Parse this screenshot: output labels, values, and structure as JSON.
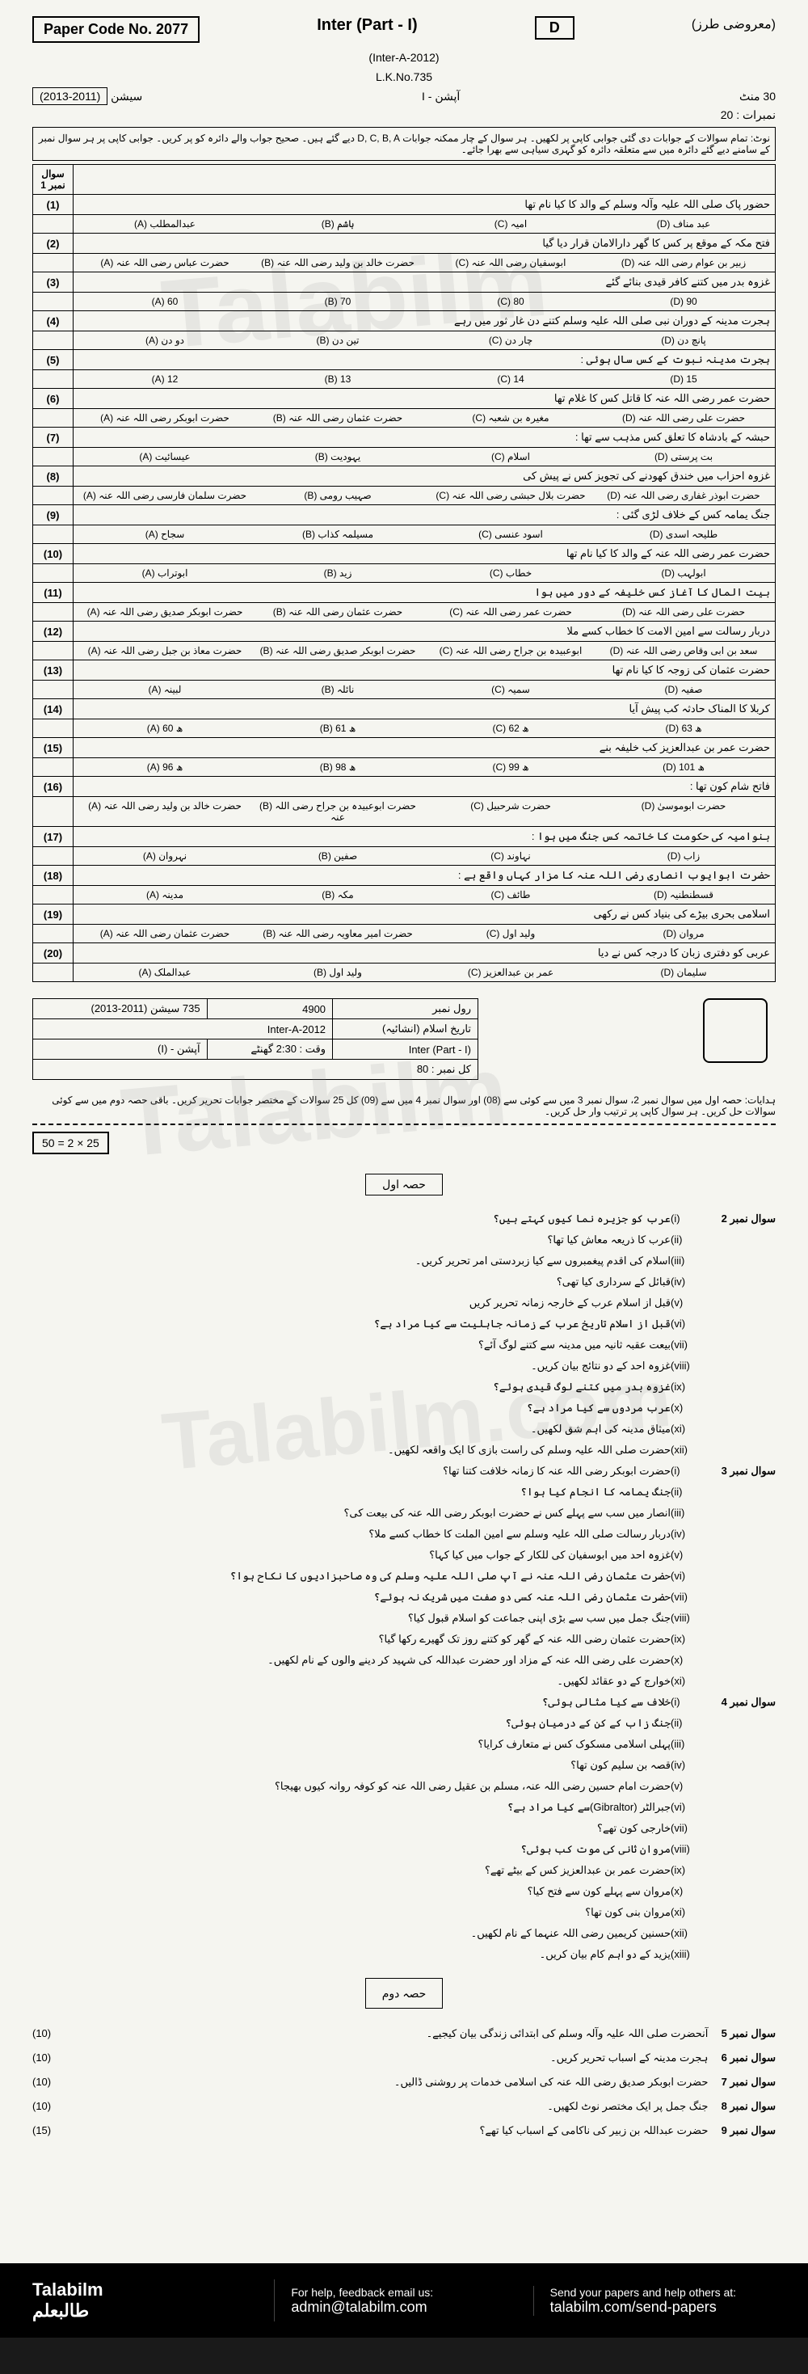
{
  "header": {
    "paper_code_label": "Paper Code No.",
    "paper_code": "2077",
    "inter": "Inter (Part - I)",
    "variant": "D",
    "exam": "(Inter-A-2012)",
    "lk": "L.K.No.735",
    "session_label": "سیشن",
    "session": "(2011-2013)",
    "option": "آپشن - I",
    "time": "30 منٹ",
    "marks_label": "نمبرات :",
    "marks": "20",
    "subject": "(معروضی طرز)"
  },
  "note": "نوٹ: تمام سوالات کے جوابات دی گئی جوابی کاپی پر لکھیں۔ ہر سوال کے چار ممکنہ جوابات D, C, B, A دیے گئے ہیں۔ صحیح جواب والے دائرہ کو پر کریں۔ جوابی کاپی پر ہر سوال نمبر کے سامنے دیے گئے دائرہ میں سے متعلقہ دائرہ کو گہری سیاہی سے بھرا جائے۔",
  "q1_label": "سوال نمبر 1",
  "mcq": [
    {
      "n": "(1)",
      "q": "حضور پاک صلی اللہ علیہ وآلہ وسلم کے والد کا کیا نام تھا",
      "opts": [
        "(A) عبدالمطلب",
        "(B) ہاشم",
        "(C) امیہ",
        "(D) عبد مناف"
      ]
    },
    {
      "n": "(2)",
      "q": "فتح مکہ کے موقع پر کس کا گھر دارالامان قرار دیا گیا",
      "opts": [
        "(A) حضرت عباس رضی اللہ عنہ",
        "(B) حضرت خالد بن ولید رضی اللہ عنہ",
        "(C) ابوسفیان رضی اللہ عنہ",
        "(D) زبیر بن عوام رضی اللہ عنہ"
      ]
    },
    {
      "n": "(3)",
      "q": "غزوہ بدر میں کتنے کافر قیدی بنائے گئے",
      "opts": [
        "(A) 60",
        "(B) 70",
        "(C) 80",
        "(D) 90"
      ]
    },
    {
      "n": "(4)",
      "q": "ہجرت مدینہ کے دوران نبی صلی اللہ علیہ وسلم کتنے دن غار ثور میں رہے",
      "opts": [
        "(A) دو دن",
        "(B) تین دن",
        "(C) چار دن",
        "(D) پانچ دن"
      ]
    },
    {
      "n": "(5)",
      "q": "ہجرت مدینہ نبوت کے کس سال ہوئی :",
      "opts": [
        "(A) 12",
        "(B) 13",
        "(C) 14",
        "(D) 15"
      ]
    },
    {
      "n": "(6)",
      "q": "حضرت عمر رضی اللہ عنہ کا قاتل کس کا غلام تھا",
      "opts": [
        "(A) حضرت ابوبکر رضی اللہ عنہ",
        "(B) حضرت عثمان رضی اللہ عنہ",
        "(C) مغیرہ بن شعبہ",
        "(D) حضرت علی رضی اللہ عنہ"
      ]
    },
    {
      "n": "(7)",
      "q": "حبشہ کے بادشاہ کا تعلق کس مذہب سے تھا :",
      "opts": [
        "(A) عیسائیت",
        "(B) یہودیت",
        "(C) اسلام",
        "(D) بت پرستی"
      ]
    },
    {
      "n": "(8)",
      "q": "غزوہ احزاب میں خندق کھودنے کی تجویز کس نے پیش کی",
      "opts": [
        "(A) حضرت سلمان فارسی رضی اللہ عنہ",
        "(B) صہیب رومی",
        "(C) حضرت بلال حبشی رضی اللہ عنہ",
        "(D) حضرت ابوذر غفاری رضی اللہ عنہ"
      ]
    },
    {
      "n": "(9)",
      "q": "جنگ یمامہ کس کے خلاف لڑی گئی :",
      "opts": [
        "(A) سجاح",
        "(B) مسیلمہ کذاب",
        "(C) اسود عنسی",
        "(D) طلیحہ اسدی"
      ]
    },
    {
      "n": "(10)",
      "q": "حضرت عمر رضی اللہ عنہ کے والد کا کیا نام تھا",
      "opts": [
        "(A) ابوتراب",
        "(B) زید",
        "(C) خطاب",
        "(D) ابولہب"
      ]
    },
    {
      "n": "(11)",
      "q": "بیت المال کا آغاز کس خلیفہ کے دور میں ہوا",
      "opts": [
        "(A) حضرت ابوبکر صدیق رضی اللہ عنہ",
        "(B) حضرت عثمان رضی اللہ عنہ",
        "(C) حضرت عمر رضی اللہ عنہ",
        "(D) حضرت علی رضی اللہ عنہ"
      ]
    },
    {
      "n": "(12)",
      "q": "دربار رسالت سے امین الامت کا خطاب کسے ملا",
      "opts": [
        "(A) حضرت معاذ بن جبل رضی اللہ عنہ",
        "(B) حضرت ابوبکر صدیق رضی اللہ عنہ",
        "(C) ابوعبیدہ بن جراح رضی اللہ عنہ",
        "(D) سعد بن ابی وقاص رضی اللہ عنہ"
      ]
    },
    {
      "n": "(13)",
      "q": "حضرت عثمان کی زوجہ کا کیا نام تھا",
      "opts": [
        "(A) لبینہ",
        "(B) نائلہ",
        "(C) سمیہ",
        "(D) صفیہ"
      ]
    },
    {
      "n": "(14)",
      "q": "کربلا کا المناک حادثہ کب پیش آیا",
      "opts": [
        "(A) 60 ھ",
        "(B) 61 ھ",
        "(C) 62 ھ",
        "(D) 63 ھ"
      ]
    },
    {
      "n": "(15)",
      "q": "حضرت عمر بن عبدالعزیز کب خلیفہ بنے",
      "opts": [
        "(A) 96 ھ",
        "(B) 98 ھ",
        "(C) 99 ھ",
        "(D) 101 ھ"
      ]
    },
    {
      "n": "(16)",
      "q": "فاتح شام کون تھا :",
      "opts": [
        "(A) حضرت خالد بن ولید رضی اللہ عنہ",
        "(B) حضرت ابوعبیدہ بن جراح رضی اللہ عنہ",
        "(C) حضرت شرحبیل",
        "(D) حضرت ابوموسیٰ"
      ]
    },
    {
      "n": "(17)",
      "q": "بنوامیہ کی حکومت کا خاتمہ کس جنگ میں ہوا :",
      "opts": [
        "(A) نہروان",
        "(B) صفین",
        "(C) نہاوند",
        "(D) زاب"
      ]
    },
    {
      "n": "(18)",
      "q": "حضرت ابوایوب انصاری رضی اللہ عنہ کا مزار کہاں واقع ہے :",
      "opts": [
        "(A) مدینہ",
        "(B) مکہ",
        "(C) طائف",
        "(D) قسطنطنیہ"
      ]
    },
    {
      "n": "(19)",
      "q": "اسلامی بحری بیڑے کی بنیاد کس نے رکھی",
      "opts": [
        "(A) حضرت عثمان رضی اللہ عنہ",
        "(B) حضرت امیر معاویہ رضی اللہ عنہ",
        "(C) ولید اول",
        "(D) مروان"
      ]
    },
    {
      "n": "(20)",
      "q": "عربی کو دفتری زبان کا درجہ کس نے دیا",
      "opts": [
        "(A) عبدالملک",
        "(B) ولید اول",
        "(C) عمر بن عبدالعزیز",
        "(D) سلیمان"
      ]
    }
  ],
  "info": {
    "roll_label": "رول نمبر",
    "roll": "4900",
    "session2": "735 سیشن (2011-2013)",
    "subject2": "تاریخ اسلام (انشائیہ)",
    "exam2": "Inter-A-2012",
    "part": "Inter (Part - I)",
    "time2": "وقت : 2:30 گھنٹے",
    "option2": "آپشن - (I)",
    "total": "کل نمبر : 80"
  },
  "instructions2": "ہدایات: حصہ اول میں سوال نمبر 2، سوال نمبر 3 میں سے کوئی سے (08) اور سوال نمبر 4 میں سے (09) کل 25 سوالات کے مختصر جوابات تحریر کریں۔ باقی حصہ دوم میں سے کوئی سوالات حل کریں۔ ہر سوال کاپی پر ترتیب وار حل کریں۔",
  "formula": "50 = 2 × 25",
  "section_a": "حصہ اول",
  "q2": {
    "label": "سوال نمبر 2",
    "items": [
      "عرب کو جزیرہ نما کیوں کہتے ہیں؟",
      "عرب کا ذریعہ معاش کیا تھا؟",
      "اسلام کی اقدم پیغمبروں سے کیا زبردستی امر تحریر کریں۔",
      "قبائل کے سرداری کیا تھی؟",
      "قبل از اسلام عرب کے خارجہ زمانہ تحریر کریں",
      "قبل از اسلام تاریخ عرب کے زمانہ جاہلیت سے کیا مراد ہے؟",
      "بیعت عقبہ ثانیہ میں مدینہ سے کتنے لوگ آئے؟",
      "غزوہ احد کے دو نتائج بیان کریں۔",
      "غزوہ بدر میں کتنے لوگ قیدی ہوئے؟",
      "عرب مردوں سے کیا مراد ہے؟",
      "میثاق مدینہ کی اہم شق لکھیں۔",
      "حضرت صلی اللہ علیہ وسلم کی راست بازی کا ایک واقعہ لکھیں۔"
    ]
  },
  "q3": {
    "label": "سوال نمبر 3",
    "items": [
      "حضرت ابوبکر رضی اللہ عنہ کا زمانہ خلافت کتنا تھا؟",
      "جنگ یمامہ کا انجام کیا ہوا؟",
      "انصار میں سب سے پہلے کس نے حضرت ابوبکر رضی اللہ عنہ کی بیعت کی؟",
      "دربار رسالت صلی اللہ علیہ وسلم سے امین الملت کا خطاب کسے ملا؟",
      "غزوہ احد میں ابوسفیان کی للکار کے جواب میں کیا کہا؟",
      "حضرت عثمان رضی اللہ عنہ نے آپ صلی اللہ علیہ وسلم کی وہ صاحبزادیوں کا نکاح ہوا؟",
      "حضرت عثمان رضی اللہ عنہ کسی دو صفت میں شریک نہ ہوئے؟",
      "جنگ جمل میں سب سے بڑی اپنی جماعت کو اسلام قبول کیا؟",
      "حضرت عثمان رضی اللہ عنہ کے گھر کو کتنے روز تک گھیرے رکھا گیا؟",
      "حضرت علی رضی اللہ عنہ کے مزاد اور حضرت عبداللہ کی شہید کر دینے والوں کے نام لکھیں۔",
      "خوارج کے دو عقائد لکھیں۔"
    ]
  },
  "q4": {
    "label": "سوال نمبر 4",
    "items": [
      "خلاف سے کیا مثالی ہوئی؟",
      "جنگ زاب کے کن کے درمیان ہوئی؟",
      "پہلی اسلامی مسکوک کس نے متعارف کرایا؟",
      "قصہ بن سلیم کون تھا؟",
      "حضرت امام حسین رضی اللہ عنہ، مسلم بن عقیل رضی اللہ عنہ کو کوفہ روانہ کیوں بھیجا؟",
      "جبرالٹر (Gibraltor)سے کیا مراد ہے؟",
      "خارجی کون تھے؟",
      "مروان ثانی کی موت کب ہوئی؟",
      "حضرت عمر بن عبدالعزیز کس کے بیٹے تھے؟",
      "مروان سے پہلے کون سے فتح کیا؟",
      "مروان بنی کون تھا؟",
      "حسنین کریمین رضی اللہ عنہما کے نام لکھیں۔",
      "یزید کے دو اہم کام بیان کریں۔"
    ]
  },
  "section_b": "حصہ دوم",
  "long": [
    {
      "n": "سوال نمبر 5",
      "q": "آنحضرت صلی اللہ علیہ وآلہ وسلم کی ابتدائی زندگی بیان کیجیے۔",
      "m": "(10)"
    },
    {
      "n": "سوال نمبر 6",
      "q": "ہجرت مدینہ کے اسباب تحریر کریں۔",
      "m": "(10)"
    },
    {
      "n": "سوال نمبر 7",
      "q": "حضرت ابوبکر صدیق رضی اللہ عنہ کی اسلامی خدمات پر روشنی ڈالیں۔",
      "m": "(10)"
    },
    {
      "n": "سوال نمبر 8",
      "q": "جنگ جمل پر ایک مختصر نوٹ لکھیں۔",
      "m": "(10)"
    },
    {
      "n": "سوال نمبر 9",
      "q": "حضرت عبداللہ بن زبیر کی ناکامی کے اسباب کیا تھے؟",
      "m": "(15)"
    }
  ],
  "footer": {
    "brand": "Talabilm",
    "brand_ur": "طالبعلم",
    "help": "For help, feedback email us:",
    "email": "admin@talabilm.com",
    "send": "Send your papers and help others at:",
    "url": "talabilm.com/send-papers"
  },
  "romans": [
    "(i)",
    "(ii)",
    "(iii)",
    "(iv)",
    "(v)",
    "(vi)",
    "(vii)",
    "(viii)",
    "(ix)",
    "(x)",
    "(xi)",
    "(xii)",
    "(xiii)"
  ]
}
